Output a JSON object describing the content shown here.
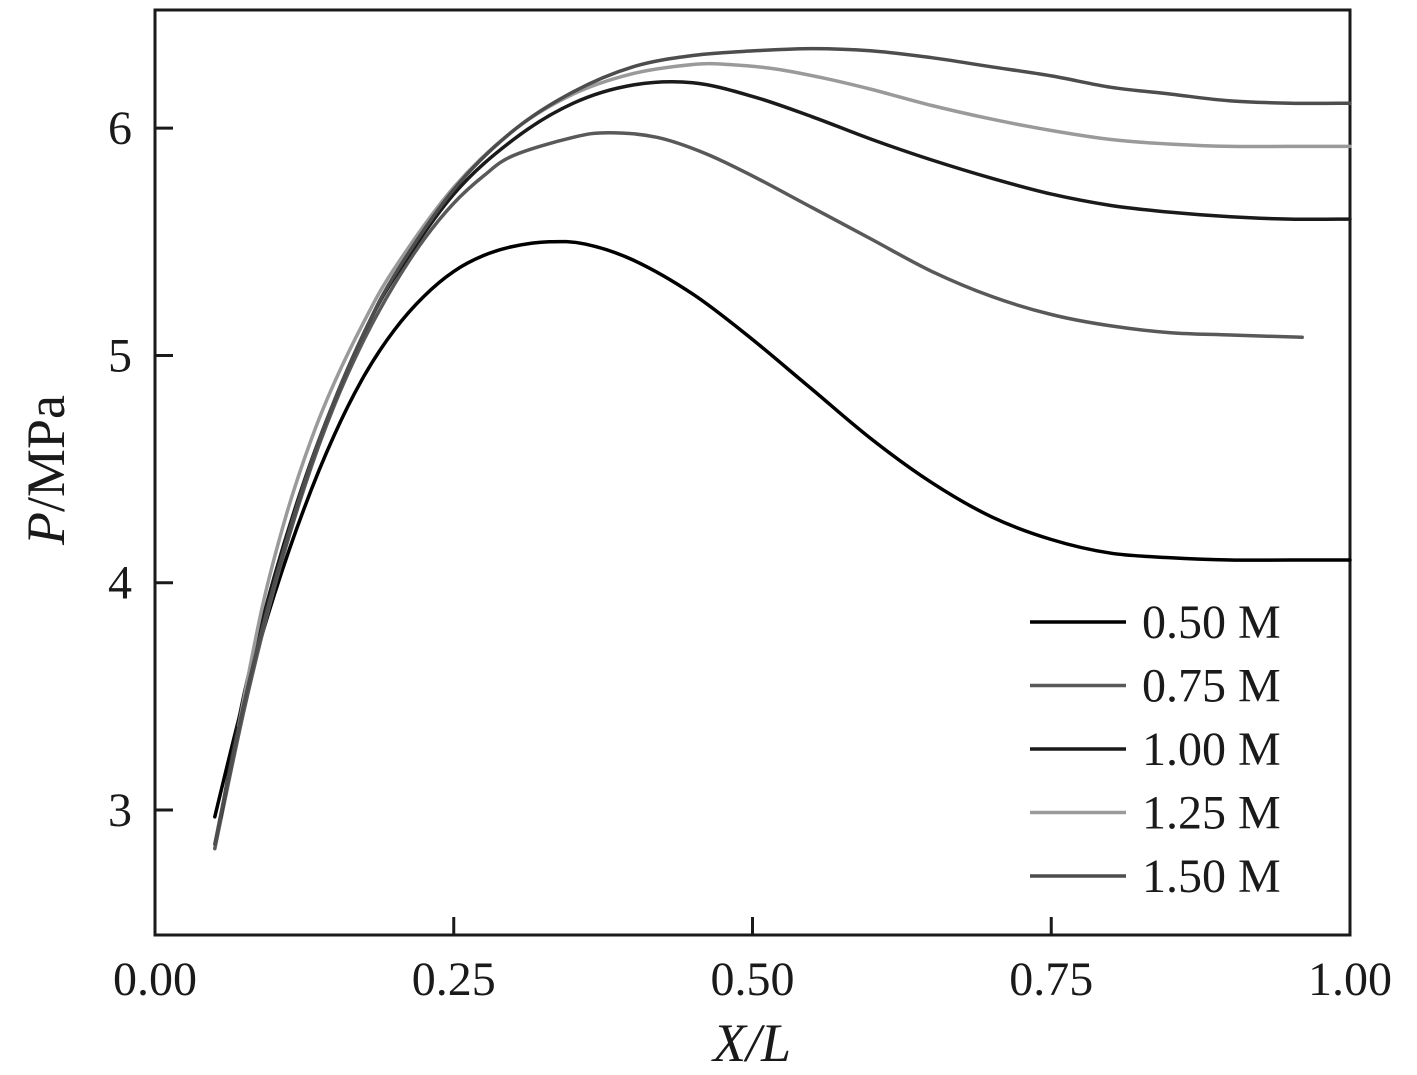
{
  "chart_data": {
    "type": "line",
    "title": "",
    "xlabel": "X/L",
    "ylabel_italic": "P",
    "ylabel_rest": "/MPa",
    "xlim": [
      0.0,
      1.0
    ],
    "ylim": [
      2.45,
      6.52
    ],
    "x_ticks": [
      0.0,
      0.25,
      0.5,
      0.75,
      1.0
    ],
    "x_tick_labels": [
      "0.00",
      "0.25",
      "0.50",
      "0.75",
      "1.00"
    ],
    "y_ticks": [
      3,
      4,
      5,
      6
    ],
    "y_tick_labels": [
      "3",
      "4",
      "5",
      "6"
    ],
    "grid": false,
    "legend_position": "lower-right-inside",
    "frame_color": "#1a1a1a",
    "series": [
      {
        "name": "0.50 M",
        "color": "#000000",
        "x": [
          0.05,
          0.075,
          0.1,
          0.125,
          0.15,
          0.175,
          0.2,
          0.225,
          0.25,
          0.275,
          0.3,
          0.33,
          0.36,
          0.4,
          0.45,
          0.5,
          0.55,
          0.6,
          0.65,
          0.7,
          0.75,
          0.8,
          0.85,
          0.9,
          0.95,
          1.0
        ],
        "y": [
          2.97,
          3.5,
          3.95,
          4.33,
          4.65,
          4.91,
          5.11,
          5.26,
          5.37,
          5.44,
          5.48,
          5.5,
          5.49,
          5.42,
          5.27,
          5.07,
          4.85,
          4.63,
          4.44,
          4.29,
          4.19,
          4.13,
          4.11,
          4.1,
          4.1,
          4.1
        ]
      },
      {
        "name": "0.75 M",
        "color": "#595959",
        "x": [
          0.05,
          0.075,
          0.1,
          0.125,
          0.15,
          0.175,
          0.2,
          0.225,
          0.25,
          0.275,
          0.3,
          0.35,
          0.38,
          0.42,
          0.46,
          0.5,
          0.55,
          0.6,
          0.65,
          0.7,
          0.75,
          0.8,
          0.85,
          0.9,
          0.96
        ],
        "y": [
          2.83,
          3.45,
          3.98,
          4.42,
          4.78,
          5.07,
          5.31,
          5.51,
          5.67,
          5.79,
          5.88,
          5.96,
          5.98,
          5.96,
          5.89,
          5.79,
          5.65,
          5.51,
          5.37,
          5.26,
          5.18,
          5.13,
          5.1,
          5.09,
          5.08
        ]
      },
      {
        "name": "1.00 M",
        "color": "#1a1a1a",
        "x": [
          0.055,
          0.075,
          0.1,
          0.125,
          0.15,
          0.175,
          0.2,
          0.25,
          0.3,
          0.35,
          0.4,
          0.45,
          0.5,
          0.55,
          0.6,
          0.65,
          0.7,
          0.75,
          0.8,
          0.85,
          0.9,
          0.95,
          1.0
        ],
        "y": [
          2.97,
          3.52,
          4.03,
          4.45,
          4.8,
          5.1,
          5.34,
          5.71,
          5.95,
          6.11,
          6.19,
          6.2,
          6.14,
          6.05,
          5.95,
          5.86,
          5.78,
          5.71,
          5.66,
          5.63,
          5.61,
          5.6,
          5.6
        ]
      },
      {
        "name": "1.25 M",
        "color": "#9a9a9a",
        "x": [
          0.07,
          0.09,
          0.11,
          0.13,
          0.15,
          0.175,
          0.2,
          0.25,
          0.3,
          0.35,
          0.4,
          0.45,
          0.48,
          0.52,
          0.56,
          0.6,
          0.65,
          0.7,
          0.75,
          0.8,
          0.85,
          0.9,
          0.95,
          1.0
        ],
        "y": [
          3.37,
          3.9,
          4.3,
          4.62,
          4.88,
          5.15,
          5.38,
          5.74,
          5.99,
          6.15,
          6.24,
          6.28,
          6.28,
          6.26,
          6.22,
          6.17,
          6.1,
          6.04,
          5.99,
          5.95,
          5.93,
          5.92,
          5.92,
          5.92
        ]
      },
      {
        "name": "1.50 M",
        "color": "#4d4d4d",
        "x": [
          0.05,
          0.075,
          0.1,
          0.125,
          0.15,
          0.175,
          0.2,
          0.25,
          0.3,
          0.35,
          0.4,
          0.45,
          0.5,
          0.55,
          0.6,
          0.65,
          0.7,
          0.75,
          0.8,
          0.85,
          0.9,
          0.95,
          1.0
        ],
        "y": [
          2.85,
          3.48,
          4.0,
          4.44,
          4.8,
          5.1,
          5.35,
          5.73,
          5.99,
          6.16,
          6.27,
          6.32,
          6.34,
          6.35,
          6.34,
          6.31,
          6.27,
          6.23,
          6.18,
          6.15,
          6.12,
          6.11,
          6.11
        ]
      }
    ]
  }
}
